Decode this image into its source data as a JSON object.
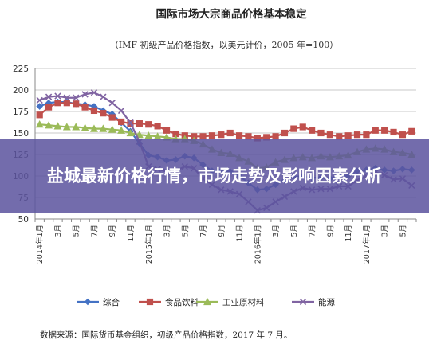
{
  "banner": {
    "headline": "盐城最新价格行情，市场走势及影响因素分析"
  },
  "chart_data": {
    "type": "line",
    "title": "国际市场大宗商品价格基本稳定",
    "subtitle": "（IMF 初级产品价格指数，以美元计价，2005 年=100）",
    "source": "数据来源：国际货币基金组织，初级产品价格指数，2017 年 7 月。",
    "xlabel": "",
    "ylabel": "",
    "ylim": [
      50,
      225
    ],
    "yticks": [
      50,
      75,
      100,
      125,
      150,
      175,
      200,
      225
    ],
    "xtick_labels": [
      "2014年1月",
      "3月",
      "5月",
      "7月",
      "9月",
      "11月",
      "2015年1月",
      "3月",
      "5月",
      "7月",
      "9月",
      "11月",
      "2016年1月",
      "3月",
      "5月",
      "7月",
      "9月",
      "11月",
      "2017年1月",
      "3月",
      "5月"
    ],
    "grid": true,
    "legend_position": "bottom",
    "x": [
      "2014-01",
      "2014-02",
      "2014-03",
      "2014-04",
      "2014-05",
      "2014-06",
      "2014-07",
      "2014-08",
      "2014-09",
      "2014-10",
      "2014-11",
      "2014-12",
      "2015-01",
      "2015-02",
      "2015-03",
      "2015-04",
      "2015-05",
      "2015-06",
      "2015-07",
      "2015-08",
      "2015-09",
      "2015-10",
      "2015-11",
      "2015-12",
      "2016-01",
      "2016-02",
      "2016-03",
      "2016-04",
      "2016-05",
      "2016-06",
      "2016-07",
      "2016-08",
      "2016-09",
      "2016-10",
      "2016-11",
      "2016-12",
      "2017-01",
      "2017-02",
      "2017-03",
      "2017-04",
      "2017-05",
      "2017-06"
    ],
    "series": [
      {
        "name": "综合",
        "color": "#4472C4",
        "marker": "diamond",
        "values": [
          181,
          185,
          186,
          186,
          184,
          183,
          181,
          176,
          172,
          162,
          152,
          138,
          124,
          122,
          118,
          119,
          123,
          121,
          113,
          106,
          106,
          105,
          100,
          92,
          84,
          85,
          90,
          95,
          99,
          100,
          98,
          98,
          97,
          101,
          100,
          106,
          107,
          109,
          107,
          106,
          108,
          107
        ]
      },
      {
        "name": "食品饮料",
        "color": "#C0504D",
        "marker": "square",
        "values": [
          171,
          180,
          185,
          185,
          184,
          180,
          176,
          173,
          168,
          163,
          161,
          161,
          160,
          158,
          153,
          149,
          147,
          146,
          146,
          147,
          148,
          150,
          147,
          146,
          144,
          145,
          146,
          150,
          155,
          157,
          153,
          150,
          148,
          146,
          147,
          148,
          148,
          153,
          153,
          151,
          148,
          152
        ]
      },
      {
        "name": "工业原材料",
        "color": "#9BBB59",
        "marker": "triangle",
        "values": [
          160,
          159,
          158,
          157,
          157,
          156,
          155,
          155,
          154,
          153,
          150,
          148,
          147,
          146,
          145,
          143,
          143,
          141,
          137,
          131,
          127,
          126,
          121,
          117,
          109,
          110,
          116,
          119,
          121,
          122,
          121,
          123,
          122,
          123,
          124,
          128,
          131,
          132,
          131,
          128,
          127,
          125
        ]
      },
      {
        "name": "能源",
        "color": "#8064A2",
        "marker": "x",
        "values": [
          188,
          192,
          193,
          191,
          191,
          195,
          197,
          192,
          185,
          176,
          162,
          140,
          111,
          108,
          105,
          106,
          111,
          109,
          97,
          90,
          84,
          82,
          79,
          70,
          60,
          63,
          70,
          76,
          82,
          86,
          84,
          85,
          85,
          88,
          88,
          95,
          100,
          104,
          101,
          96,
          97,
          89
        ]
      }
    ]
  }
}
